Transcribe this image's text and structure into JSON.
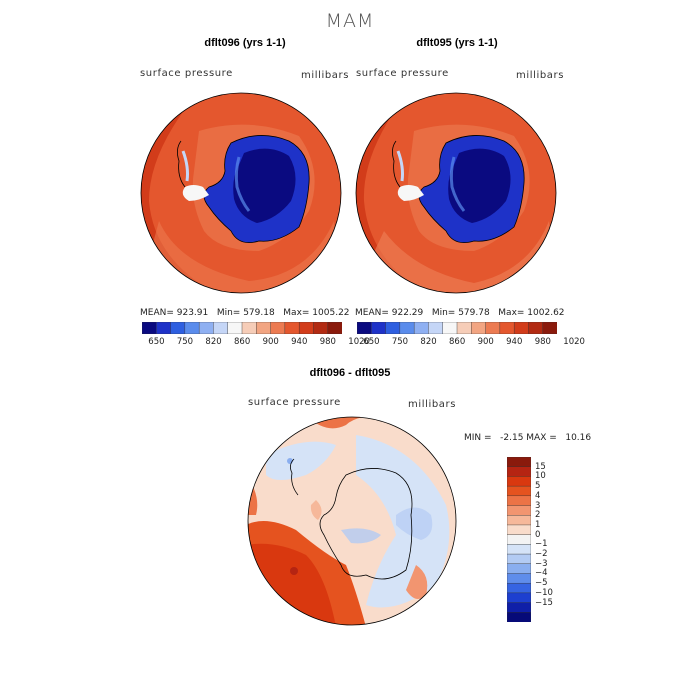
{
  "figure": {
    "title": "MAM",
    "left_panel": {
      "title": "dflt096 (yrs 1-1)",
      "field_label": "surface pressure",
      "units_label": "millibars",
      "mean_label": "MEAN= 923.91",
      "min_label": "Min= 579.18",
      "max_label": "Max= 1005.22"
    },
    "right_panel": {
      "title": "dflt095 (yrs 1-1)",
      "field_label": "surface pressure",
      "units_label": "millibars",
      "mean_label": "MEAN= 922.29",
      "min_label": "Min= 579.78",
      "max_label": "Max= 1002.62"
    },
    "top_colorbar": {
      "tick_labels": [
        "650",
        "750",
        "820",
        "860",
        "900",
        "940",
        "980",
        "1020"
      ],
      "colors": [
        "#0a0a80",
        "#1e32c8",
        "#2e5fe0",
        "#5a8cec",
        "#8fb0f2",
        "#c5d6f7",
        "#f7f7f7",
        "#f6cdb8",
        "#f2a582",
        "#ec7b52",
        "#e4572e",
        "#d23c1a",
        "#b22a12",
        "#8a1a0c"
      ]
    },
    "diff_panel": {
      "title": "dflt096 - dflt095",
      "field_label": "surface pressure",
      "units_label": "millibars",
      "minmax_label": "MIN =   -2.15 MAX =   10.16"
    },
    "diff_colorbar": {
      "tick_labels": [
        "15",
        "10",
        "5",
        "4",
        "3",
        "2",
        "1",
        "0",
        "−1",
        "−2",
        "−3",
        "−4",
        "−5",
        "−10",
        "−15"
      ],
      "colors": [
        "#8a1a0c",
        "#b52412",
        "#d9380f",
        "#e5531f",
        "#ec7346",
        "#f29570",
        "#f6b89a",
        "#f9dccb",
        "#f3f3f3",
        "#d5e3f7",
        "#b3cbf3",
        "#8aaeef",
        "#5f8deb",
        "#3664e2",
        "#1d3fd0",
        "#0f1fa8",
        "#060a78"
      ]
    }
  }
}
